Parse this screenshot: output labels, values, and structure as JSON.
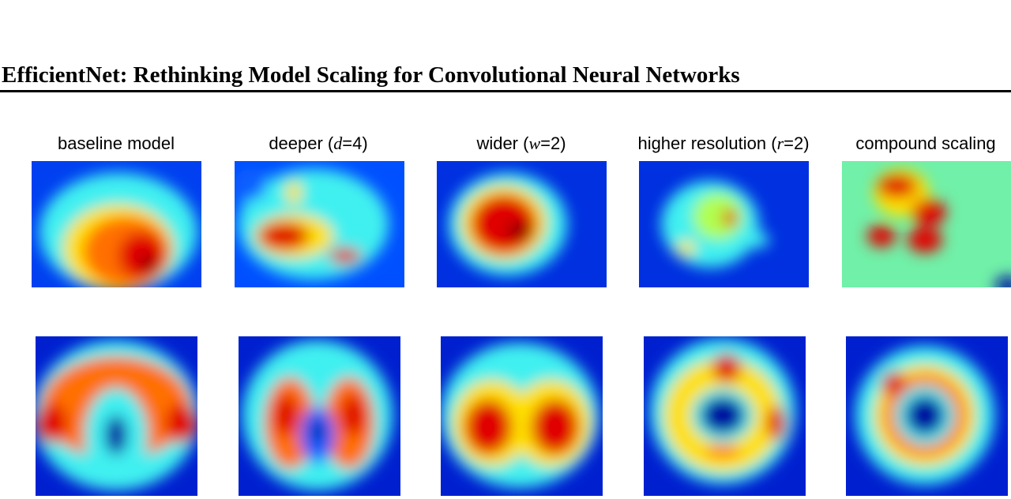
{
  "header": {
    "title": "EfficientNet: Rethinking Model Scaling for Convolutional Neural Networks"
  },
  "columns": [
    {
      "label": [
        "baseline model"
      ]
    },
    {
      "label": [
        "deeper (",
        "d",
        "=4)"
      ]
    },
    {
      "label": [
        "wider (",
        "w",
        "=2)"
      ]
    },
    {
      "label": [
        "higher resolution (",
        "r",
        "=2)"
      ]
    },
    {
      "label": [
        "compound scaling"
      ]
    }
  ]
}
